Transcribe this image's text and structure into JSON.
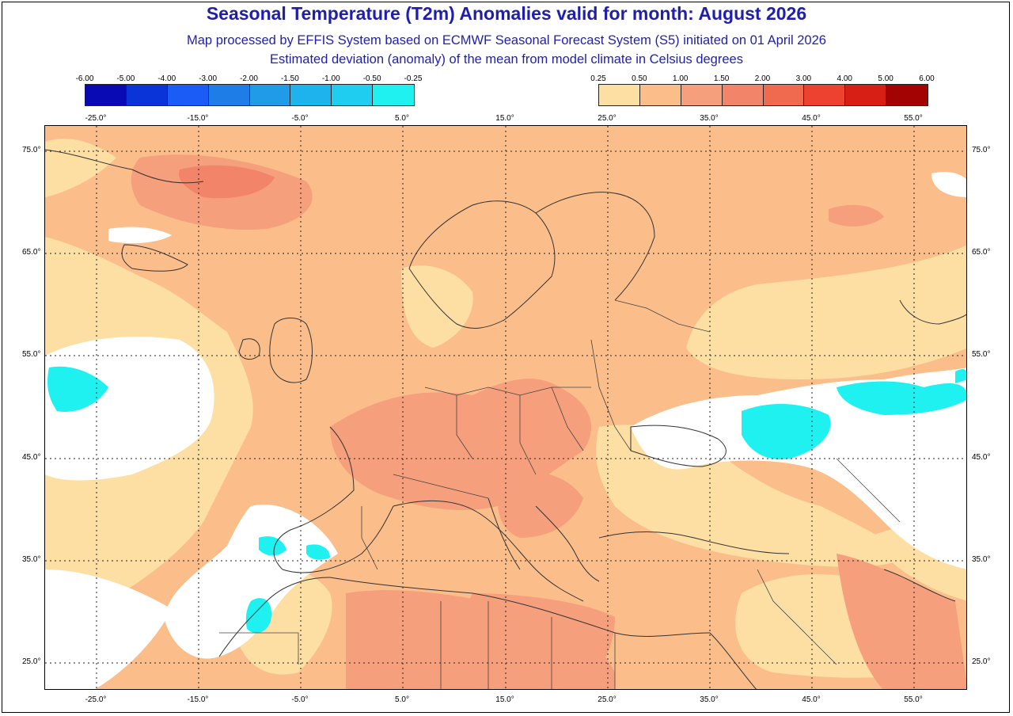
{
  "header": {
    "title": "Seasonal Temperature (T2m) Anomalies valid for month: August 2026",
    "subtitle1": "Map processed by EFFIS System based on ECMWF Seasonal Forecast System (S5) initiated on 01 April 2026",
    "subtitle2": "Estimated deviation (anomaly) of the mean from model climate in Celsius degrees"
  },
  "legend_negative": {
    "labels": [
      "-6.00",
      "-5.00",
      "-4.00",
      "-3.00",
      "-2.00",
      "-1.50",
      "-1.00",
      "-0.50",
      "-0.25"
    ],
    "colors": [
      "#0a0ab4",
      "#0a33d8",
      "#1a5cf5",
      "#1f7de8",
      "#1f9be8",
      "#1fb3ee",
      "#1fcdf0",
      "#1ff0f0"
    ]
  },
  "legend_positive": {
    "labels": [
      "0.25",
      "0.50",
      "1.00",
      "1.50",
      "2.00",
      "3.00",
      "4.00",
      "5.00",
      "6.00"
    ],
    "colors": [
      "#fddfa4",
      "#fbbe8b",
      "#f59f7c",
      "#f2846a",
      "#f06a4f",
      "#ee4230",
      "#d81f16",
      "#a40303"
    ]
  },
  "axes": {
    "lon_labels": [
      "-25.0°",
      "-15.0°",
      "-5.0°",
      "5.0°",
      "15.0°",
      "25.0°",
      "35.0°",
      "45.0°",
      "55.0°"
    ],
    "lat_labels": [
      "75.0°",
      "65.0°",
      "55.0°",
      "45.0°",
      "35.0°",
      "25.0°"
    ]
  },
  "map_colors": {
    "white": "#ffffff",
    "light": "#fddfa4",
    "mid": "#fbbe8b",
    "warm": "#f59f7c",
    "hot": "#f2846a",
    "cyan": "#1ff0f0"
  }
}
